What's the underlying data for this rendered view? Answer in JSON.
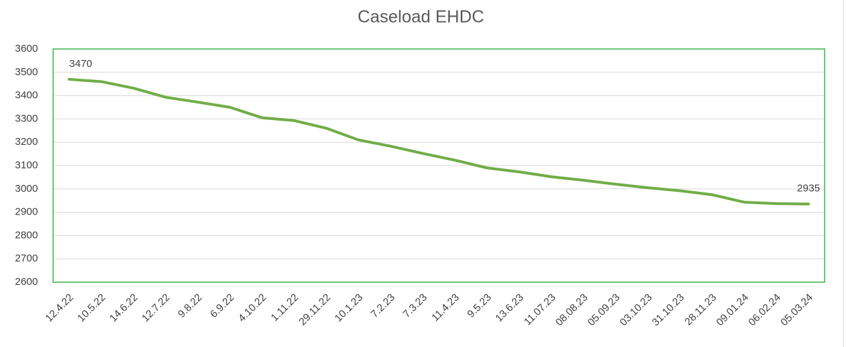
{
  "chart_data": {
    "type": "line",
    "title": "Caseload EHDC",
    "categories": [
      "12.4.22",
      "10.5.22",
      "14.6.22",
      "12.7.22",
      "9.8.22",
      "6.9.22",
      "4.10.22",
      "1.11.22",
      "29.11.22",
      "10.1.23",
      "7.2.23",
      "7.3.23",
      "11.4.23",
      "9.5.23",
      "13.6.23",
      "11.07.23",
      "08.08.23",
      "05.09.23",
      "03.10.23",
      "31.10.23",
      "28.11.23",
      "09.01.24",
      "06.02.24",
      "05.03.24"
    ],
    "values": [
      3470,
      3460,
      3432,
      3393,
      3372,
      3350,
      3305,
      3293,
      3260,
      3210,
      3183,
      3152,
      3123,
      3090,
      3073,
      3052,
      3037,
      3020,
      3005,
      2992,
      2975,
      2943,
      2937,
      2935
    ],
    "color": "#70ad47",
    "ylim": [
      2600,
      3600
    ],
    "yticks": [
      2600,
      2700,
      2800,
      2900,
      3000,
      3100,
      3200,
      3300,
      3400,
      3500,
      3600
    ],
    "grid": true
  }
}
